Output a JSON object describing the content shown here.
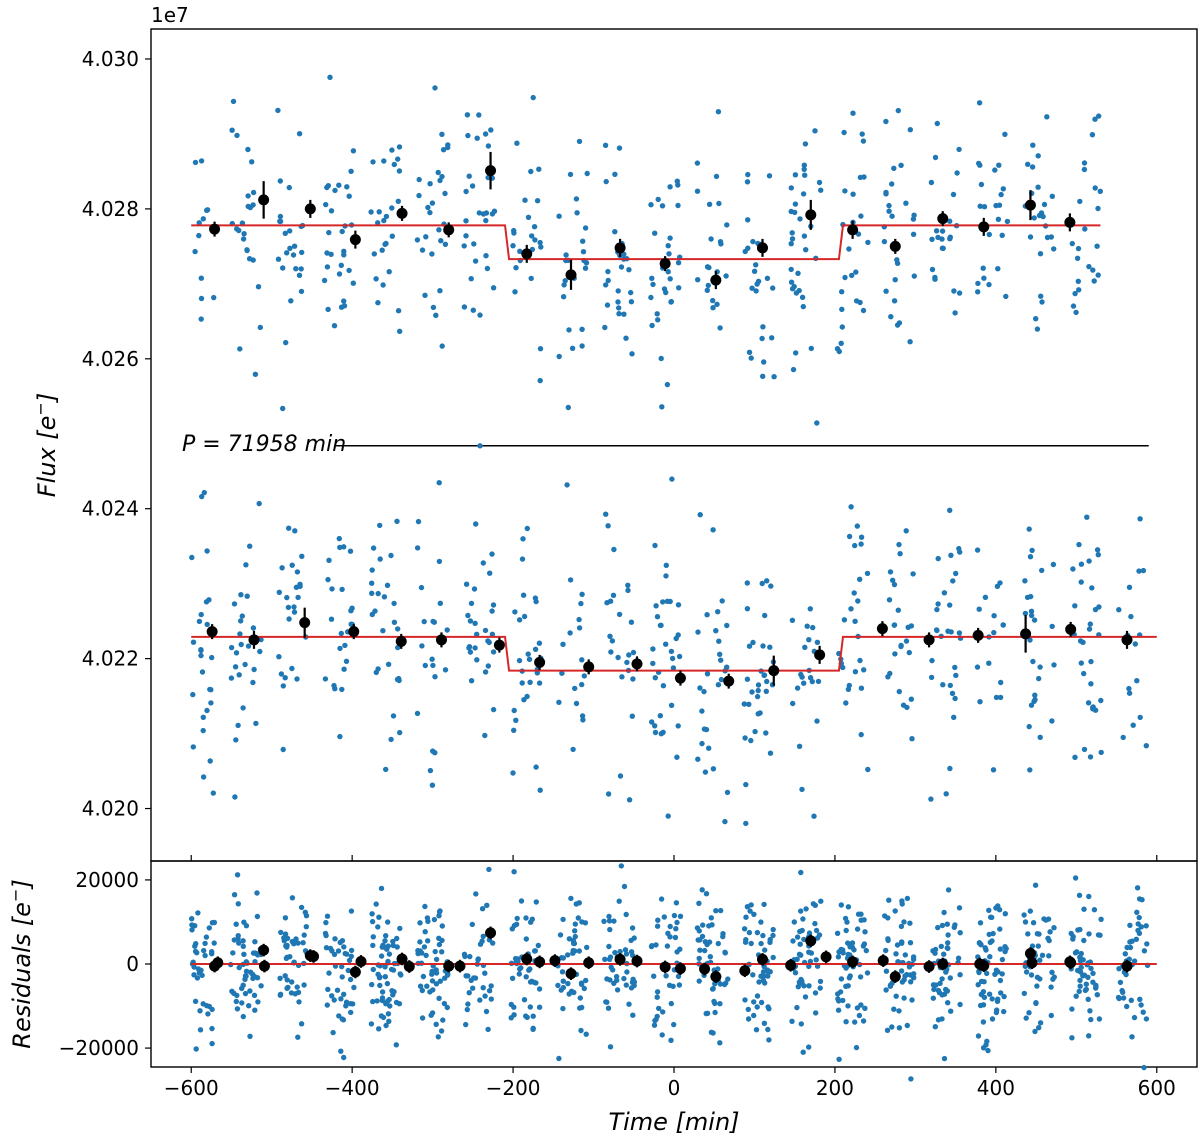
{
  "chart_data": {
    "type": "scatter",
    "colors": {
      "raw_points": "#1f77b4",
      "binned_points": "#000000",
      "model": "#d62728",
      "separator": "#000000"
    },
    "x": {
      "label_prefix": "Time [",
      "label_unit": "min",
      "label_suffix": "]",
      "range": [
        -650,
        650
      ],
      "ticks": [
        -600,
        -400,
        -200,
        0,
        200,
        400,
        600
      ],
      "tick_labels": [
        "−600",
        "−400",
        "−200",
        "0",
        "200",
        "400",
        "600"
      ]
    },
    "flux_panel": {
      "ylabel_prefix": "Flux [",
      "ylabel_unit": "e",
      "ylabel_sup": "−",
      "ylabel_suffix": "]",
      "offset_label": "1e7",
      "y_range": [
        4.0193,
        4.0304
      ],
      "ticks": [
        4.02,
        4.022,
        4.024,
        4.026,
        4.028,
        4.03
      ],
      "tick_labels": [
        "4.020",
        "4.022",
        "4.024",
        "4.026",
        "4.028",
        "4.030"
      ],
      "period_annotation": {
        "prefix": "P = 71958 ",
        "unit": "min",
        "line_y": 4.02484,
        "line_x": [
          -420,
          590
        ]
      },
      "upper": {
        "x_range": [
          -600,
          530
        ],
        "baseline": 4.02778,
        "depth": 0.00045,
        "transit": [
          -210,
          210
        ],
        "scatter_sigma": 0.00085,
        "raw_count": 520,
        "binned": [
          [
            -571,
            4.02773,
            0.0001
          ],
          [
            -510,
            4.02812,
            0.00025
          ],
          [
            -452,
            4.028,
            0.00012
          ],
          [
            -396,
            4.02759,
            0.00012
          ],
          [
            -338,
            4.02794,
            0.0001
          ],
          [
            -280,
            4.02772,
            0.0001
          ],
          [
            -228,
            4.02851,
            0.00025
          ],
          [
            -183,
            4.0274,
            0.00012
          ],
          [
            -128,
            4.02712,
            0.0002
          ],
          [
            -67,
            4.02748,
            0.00012
          ],
          [
            -11,
            4.02727,
            0.0001
          ],
          [
            52,
            4.02705,
            0.00012
          ],
          [
            110,
            4.02748,
            0.00012
          ],
          [
            170,
            4.02792,
            0.0002
          ],
          [
            222,
            4.02772,
            0.00012
          ],
          [
            275,
            4.0275,
            0.0001
          ],
          [
            334,
            4.02787,
            0.0001
          ],
          [
            385,
            4.02776,
            0.00012
          ],
          [
            443,
            4.02805,
            0.0002
          ],
          [
            492,
            4.02782,
            0.00012
          ]
        ]
      },
      "lower": {
        "x_range": [
          -600,
          600
        ],
        "baseline": 4.02229,
        "depth": 0.00045,
        "transit": [
          -210,
          210
        ],
        "scatter_sigma": 0.00085,
        "raw_count": 540,
        "binned": [
          [
            -574,
            4.02236,
            0.0001
          ],
          [
            -522,
            4.02225,
            0.00012
          ],
          [
            -459,
            4.02248,
            0.0002
          ],
          [
            -398,
            4.02236,
            0.0001
          ],
          [
            -339,
            4.02223,
            0.0001
          ],
          [
            -289,
            4.02225,
            0.0001
          ],
          [
            -217,
            4.02218,
            0.0001
          ],
          [
            -167,
            4.02195,
            0.0001
          ],
          [
            -106,
            4.02189,
            0.0001
          ],
          [
            -46,
            4.02193,
            0.0001
          ],
          [
            8,
            4.02174,
            0.0001
          ],
          [
            68,
            4.0217,
            0.0001
          ],
          [
            124,
            4.02184,
            0.0002
          ],
          [
            181,
            4.02205,
            0.00012
          ],
          [
            259,
            4.0224,
            0.0001
          ],
          [
            317,
            4.02225,
            0.0001
          ],
          [
            378,
            4.02231,
            0.0001
          ],
          [
            437,
            4.02233,
            0.00025
          ],
          [
            493,
            4.02239,
            0.0001
          ],
          [
            563,
            4.02225,
            0.00012
          ]
        ]
      }
    },
    "residual_panel": {
      "ylabel_prefix": "Residuals [",
      "ylabel_unit": "e",
      "ylabel_sup": "−",
      "ylabel_suffix": "]",
      "y_range": [
        -24500,
        24500
      ],
      "ticks": [
        -20000,
        0,
        20000
      ],
      "tick_labels": [
        "−20000",
        "0",
        "20000"
      ],
      "scatter_sigma": 8500,
      "raw_count": 1060,
      "binned": [
        [
          -571,
          -500,
          1500
        ],
        [
          -567,
          300,
          1500
        ],
        [
          -510,
          3300,
          1500
        ],
        [
          -509,
          -500,
          1500
        ],
        [
          -452,
          2000,
          1500
        ],
        [
          -448,
          1800,
          1500
        ],
        [
          -396,
          -1900,
          1500
        ],
        [
          -389,
          600,
          1500
        ],
        [
          -338,
          1200,
          1500
        ],
        [
          -329,
          -600,
          1500
        ],
        [
          -280,
          -500,
          1500
        ],
        [
          -266,
          -500,
          1500
        ],
        [
          -228,
          7400,
          1500
        ],
        [
          -183,
          1200,
          1500
        ],
        [
          -167,
          500,
          1500
        ],
        [
          -148,
          800,
          1500
        ],
        [
          -128,
          -2300,
          1500
        ],
        [
          -106,
          300,
          1500
        ],
        [
          -67,
          1100,
          1500
        ],
        [
          -46,
          700,
          1500
        ],
        [
          -11,
          -700,
          1500
        ],
        [
          8,
          -1100,
          1500
        ],
        [
          38,
          -1200,
          1500
        ],
        [
          52,
          -3000,
          1500
        ],
        [
          88,
          -1600,
          1500
        ],
        [
          110,
          1100,
          1500
        ],
        [
          145,
          -300,
          1500
        ],
        [
          170,
          5500,
          1500
        ],
        [
          189,
          1700,
          1500
        ],
        [
          222,
          500,
          1500
        ],
        [
          260,
          800,
          1500
        ],
        [
          275,
          -3000,
          1500
        ],
        [
          317,
          -600,
          1500
        ],
        [
          334,
          0,
          1500
        ],
        [
          380,
          0,
          1500
        ],
        [
          385,
          -400,
          1500
        ],
        [
          443,
          2500,
          1500
        ],
        [
          445,
          300,
          1500
        ],
        [
          492,
          500,
          1500
        ],
        [
          493,
          300,
          1500
        ],
        [
          563,
          -500,
          1500
        ]
      ]
    }
  }
}
